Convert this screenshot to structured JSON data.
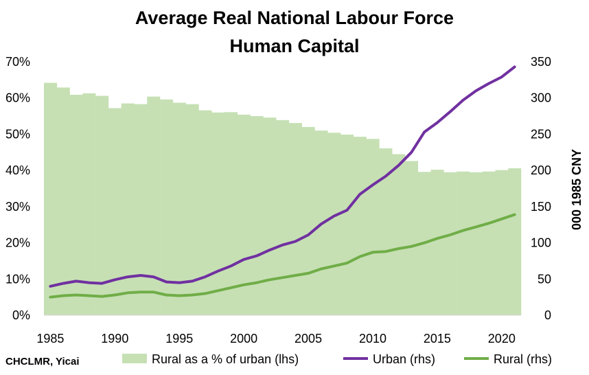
{
  "chart_data": {
    "type": "bar+line",
    "title_line1": "Average Real National Labour Force",
    "title_line2": "Human Capital",
    "ylabel_right": "000 1985 CNY",
    "source": "CHCLMR, Yicai",
    "x": [
      1985,
      1986,
      1987,
      1988,
      1989,
      1990,
      1991,
      1992,
      1993,
      1994,
      1995,
      1996,
      1997,
      1998,
      1999,
      2000,
      2001,
      2002,
      2003,
      2004,
      2005,
      2006,
      2007,
      2008,
      2009,
      2010,
      2011,
      2012,
      2013,
      2014,
      2015,
      2016,
      2017,
      2018,
      2019,
      2020,
      2021
    ],
    "x_tick_labels": [
      "1985",
      "1990",
      "1995",
      "2000",
      "2005",
      "2010",
      "2015",
      "2020"
    ],
    "x_tick_values": [
      1985,
      1990,
      1995,
      2000,
      2005,
      2010,
      2015,
      2020
    ],
    "y_left": {
      "min": 0,
      "max": 70,
      "step": 10,
      "tick_labels": [
        "0%",
        "10%",
        "20%",
        "30%",
        "40%",
        "50%",
        "60%",
        "70%"
      ]
    },
    "y_right": {
      "min": 0,
      "max": 350,
      "step": 50,
      "tick_labels": [
        "0",
        "50",
        "100",
        "150",
        "200",
        "250",
        "300",
        "350"
      ]
    },
    "series": [
      {
        "name": "Rural as a % of urban (lhs)",
        "kind": "bar",
        "axis": "left",
        "color": "#c6e0b4",
        "values": [
          64.2,
          62.9,
          60.9,
          61.3,
          60.6,
          57.2,
          58.5,
          58.3,
          60.4,
          59.6,
          58.7,
          58.3,
          56.6,
          56.0,
          56.1,
          55.4,
          55.0,
          54.6,
          53.9,
          53.1,
          52.0,
          51.0,
          50.4,
          49.9,
          49.3,
          48.7,
          46.1,
          44.5,
          42.6,
          39.6,
          40.2,
          39.5,
          39.7,
          39.5,
          39.7,
          40.1,
          40.6
        ]
      },
      {
        "name": "Urban (rhs)",
        "kind": "line",
        "axis": "right",
        "color": "#7030a0",
        "values": [
          40,
          44,
          47,
          45,
          44,
          49,
          53,
          55,
          53,
          46,
          45,
          47,
          53,
          61,
          68,
          77,
          82,
          90,
          97,
          102,
          111,
          126,
          137,
          145,
          167,
          180,
          192,
          207,
          225,
          253,
          266,
          281,
          297,
          310,
          320,
          329,
          343
        ]
      },
      {
        "name": "Rural (rhs)",
        "kind": "line",
        "axis": "right",
        "color": "#70ad47",
        "values": [
          25,
          27,
          28,
          27,
          26,
          28,
          31,
          32,
          32,
          28,
          27,
          28,
          30,
          34,
          38,
          42,
          45,
          49,
          52,
          55,
          58,
          64,
          68,
          72,
          81,
          87,
          88,
          92,
          95,
          100,
          106,
          111,
          117,
          122,
          127,
          133,
          139
        ]
      }
    ],
    "legend_position": "bottom"
  }
}
